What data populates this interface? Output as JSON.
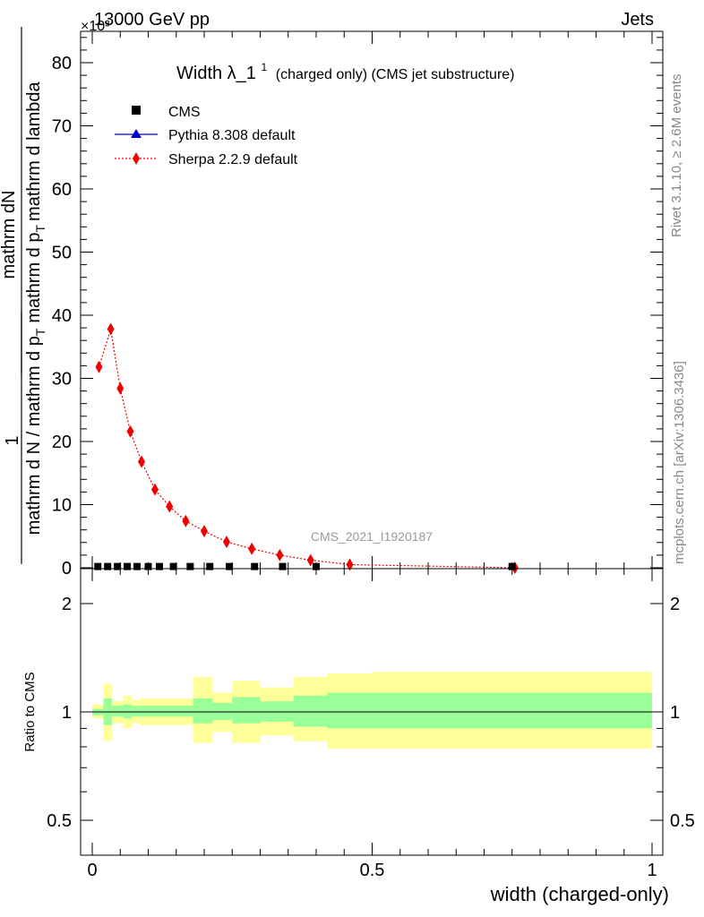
{
  "header": {
    "left": "13000 GeV pp",
    "right": "Jets",
    "multiplier": "×10³"
  },
  "side_labels": {
    "rivet": "Rivet 3.1.10, ≥ 2.6M events",
    "mcplots": "mcplots.cern.ch [arXiv:1306.3436]"
  },
  "colors": {
    "cms": "#000000",
    "pythia": "#0000cc",
    "sherpa": "#ee0000",
    "band_outer": "#ffff99",
    "band_inner": "#99ff99"
  },
  "chart_data": [
    {
      "type": "scatter",
      "title_main": "Width λ_1",
      "title_sup": "1",
      "title_rest": "(charged only) (CMS jet substructure)",
      "watermark": "CMS_2021_I1920187",
      "ylabel_top_num": "mathrm dN",
      "ylabel_top_den": "mathrm d p",
      "ylabel_top_sub": "T",
      "ylabel_top_den2": "mathrm d lambda",
      "ylabel_bot_one": "1",
      "ylabel_bot_den": "mathrm d N / mathrm d p",
      "ylabel_bot_sub": "T",
      "xlim": [
        0,
        1
      ],
      "ylim": [
        0,
        85
      ],
      "y_unit_note": "values in units of 10^3",
      "y_ticks": [
        "0",
        "10",
        "20",
        "30",
        "40",
        "50",
        "60",
        "70",
        "80"
      ],
      "legend_position": "top-left",
      "series": [
        {
          "name": "CMS",
          "marker": "square",
          "x": [
            0.01,
            0.0275,
            0.045,
            0.0625,
            0.08,
            0.1,
            0.12,
            0.145,
            0.175,
            0.21,
            0.245,
            0.29,
            0.34,
            0.4,
            0.75
          ],
          "y": [
            0.05,
            0.05,
            0.05,
            0.05,
            0.05,
            0.05,
            0.05,
            0.05,
            0.05,
            0.05,
            0.05,
            0.05,
            0.05,
            0.05,
            0.05
          ]
        },
        {
          "name": "Pythia 8.308 default",
          "marker": "triangle",
          "x": [],
          "y": []
        },
        {
          "name": "Sherpa 2.2.9 default",
          "marker": "diamond",
          "x": [
            0.012,
            0.033,
            0.05,
            0.068,
            0.088,
            0.112,
            0.138,
            0.167,
            0.2,
            0.24,
            0.285,
            0.335,
            0.39,
            0.46,
            0.755
          ],
          "y": [
            31.8,
            37.8,
            28.4,
            21.6,
            16.8,
            12.4,
            9.7,
            7.4,
            5.8,
            4.1,
            3.0,
            2.0,
            1.2,
            0.5,
            0.0
          ]
        }
      ]
    },
    {
      "type": "area",
      "ylabel": "Ratio to CMS",
      "xlabel": "width (charged-only)",
      "xlim": [
        0,
        1
      ],
      "ylim": [
        0.4,
        2.3
      ],
      "y_scale": "log",
      "x_ticks": [
        "0",
        "0.5",
        "1"
      ],
      "y_ticks": [
        "0.5",
        "1",
        "2"
      ],
      "bands": {
        "edges": [
          0,
          0.02,
          0.035,
          0.055,
          0.07,
          0.085,
          0.18,
          0.215,
          0.25,
          0.3,
          0.36,
          0.42,
          0.5,
          1.0
        ],
        "outer_lo": [
          0.96,
          0.83,
          0.93,
          0.9,
          0.93,
          0.92,
          0.82,
          0.88,
          0.82,
          0.86,
          0.83,
          0.79,
          0.79
        ],
        "outer_hi": [
          1.05,
          1.2,
          1.07,
          1.11,
          1.08,
          1.09,
          1.25,
          1.13,
          1.22,
          1.17,
          1.25,
          1.28,
          1.29
        ],
        "inner_lo": [
          0.98,
          0.92,
          0.97,
          0.96,
          0.97,
          0.97,
          0.93,
          0.95,
          0.93,
          0.94,
          0.91,
          0.9,
          0.9
        ],
        "inner_hi": [
          1.02,
          1.09,
          1.04,
          1.05,
          1.04,
          1.04,
          1.09,
          1.06,
          1.1,
          1.07,
          1.11,
          1.13,
          1.13
        ]
      }
    }
  ]
}
